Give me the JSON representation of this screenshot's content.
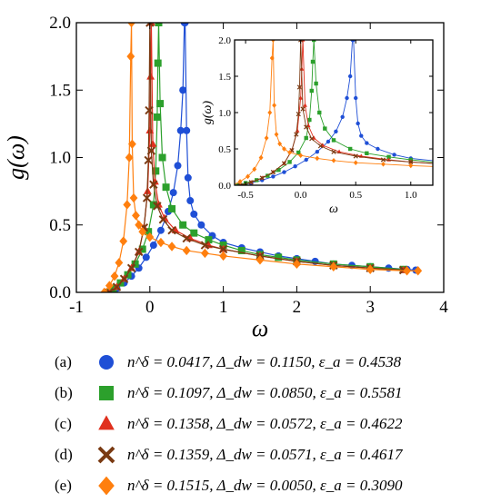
{
  "chart_data": {
    "type": "scatter",
    "xlabel": "ω",
    "ylabel": "g(ω)",
    "xlim": [
      -1,
      4
    ],
    "ylim": [
      0,
      2.0
    ],
    "xticks": [
      "-1",
      "0",
      "1",
      "2",
      "3",
      "4"
    ],
    "yticks": [
      "0.0",
      "0.5",
      "1.0",
      "1.5",
      "2.0"
    ],
    "series": [
      {
        "id": "a",
        "color": "#1f4fd6",
        "marker": "circle",
        "x": [
          -0.53,
          -0.45,
          -0.35,
          -0.25,
          -0.15,
          -0.05,
          0.05,
          0.15,
          0.25,
          0.32,
          0.38,
          0.42,
          0.45,
          0.47,
          0.48,
          0.5,
          0.52,
          0.55,
          0.6,
          0.7,
          0.85,
          1.0,
          1.25,
          1.5,
          1.75,
          2.0,
          2.25,
          2.5,
          2.75,
          3.0,
          3.25,
          3.5,
          3.62
        ],
        "y": [
          0.0,
          0.03,
          0.07,
          0.12,
          0.18,
          0.26,
          0.35,
          0.46,
          0.6,
          0.74,
          0.94,
          1.2,
          1.5,
          2.0,
          2.0,
          1.2,
          0.85,
          0.68,
          0.58,
          0.5,
          0.42,
          0.37,
          0.33,
          0.3,
          0.27,
          0.25,
          0.23,
          0.21,
          0.2,
          0.19,
          0.18,
          0.17,
          0.165
        ]
      },
      {
        "id": "b",
        "color": "#2ca02c",
        "marker": "square",
        "x": [
          -0.57,
          -0.5,
          -0.4,
          -0.3,
          -0.2,
          -0.1,
          -0.02,
          0.05,
          0.08,
          0.1,
          0.11,
          0.12,
          0.14,
          0.17,
          0.22,
          0.3,
          0.45,
          0.6,
          0.8,
          1.0,
          1.25,
          1.5,
          1.75,
          2.0,
          2.5,
          3.0,
          3.45
        ],
        "y": [
          0.0,
          0.03,
          0.07,
          0.13,
          0.21,
          0.32,
          0.45,
          0.65,
          0.9,
          1.3,
          1.7,
          2.0,
          1.4,
          1.0,
          0.78,
          0.62,
          0.5,
          0.44,
          0.39,
          0.35,
          0.31,
          0.28,
          0.26,
          0.24,
          0.21,
          0.19,
          0.17
        ]
      },
      {
        "id": "c",
        "color": "#e0301e",
        "marker": "triangle",
        "x": [
          -0.55,
          -0.45,
          -0.35,
          -0.25,
          -0.15,
          -0.08,
          -0.03,
          0.0,
          0.01,
          0.02,
          0.04,
          0.07,
          0.12,
          0.2,
          0.35,
          0.55,
          0.8,
          1.0,
          1.5,
          2.0,
          2.5,
          3.0,
          3.45
        ],
        "y": [
          0.0,
          0.04,
          0.1,
          0.18,
          0.3,
          0.48,
          0.75,
          1.2,
          1.6,
          2.0,
          1.1,
          0.82,
          0.65,
          0.55,
          0.46,
          0.4,
          0.35,
          0.32,
          0.27,
          0.23,
          0.2,
          0.18,
          0.165
        ]
      },
      {
        "id": "d",
        "color": "#7a3a12",
        "marker": "cross",
        "x": [
          -0.55,
          -0.45,
          -0.35,
          -0.25,
          -0.15,
          -0.08,
          -0.04,
          -0.02,
          -0.01,
          0.0,
          0.02,
          0.05,
          0.1,
          0.18,
          0.3,
          0.5,
          0.75,
          1.0,
          1.5,
          2.0,
          2.5,
          3.0,
          3.45
        ],
        "y": [
          0.0,
          0.04,
          0.1,
          0.18,
          0.3,
          0.48,
          0.7,
          0.98,
          1.35,
          2.0,
          1.05,
          0.8,
          0.64,
          0.54,
          0.46,
          0.4,
          0.35,
          0.32,
          0.27,
          0.23,
          0.2,
          0.18,
          0.165
        ]
      },
      {
        "id": "e",
        "color": "#ff7f0e",
        "marker": "diamond",
        "x": [
          -0.62,
          -0.55,
          -0.48,
          -0.42,
          -0.36,
          -0.31,
          -0.28,
          -0.26,
          -0.25,
          -0.24,
          -0.22,
          -0.19,
          -0.15,
          -0.1,
          0.0,
          0.15,
          0.3,
          0.5,
          0.75,
          1.0,
          1.5,
          2.0,
          2.5,
          3.0,
          3.5,
          3.65
        ],
        "y": [
          0.0,
          0.05,
          0.12,
          0.22,
          0.38,
          0.65,
          1.0,
          1.75,
          2.0,
          1.1,
          0.7,
          0.57,
          0.5,
          0.45,
          0.41,
          0.37,
          0.34,
          0.31,
          0.29,
          0.27,
          0.24,
          0.21,
          0.19,
          0.17,
          0.16,
          0.16
        ]
      }
    ],
    "inset": {
      "xlabel": "ω",
      "ylabel": "g(ω)",
      "xlim": [
        -0.6,
        1.2
      ],
      "ylim": [
        0,
        2.0
      ],
      "xticks": [
        "-0.5",
        "0.0",
        "0.5",
        "1.0"
      ],
      "yticks": [
        "0.0",
        "0.5",
        "1.0",
        "1.5",
        "2.0"
      ]
    }
  },
  "legend": [
    {
      "label": "(a)",
      "series": "a",
      "text": "n^δ = 0.0417,  Δ_dw = 0.1150,  ε_a = 0.4538"
    },
    {
      "label": "(b)",
      "series": "b",
      "text": "n^δ = 0.1097,  Δ_dw = 0.0850,  ε_a = 0.5581"
    },
    {
      "label": "(c)",
      "series": "c",
      "text": "n^δ = 0.1358,  Δ_dw = 0.0572,  ε_a = 0.4622"
    },
    {
      "label": "(d)",
      "series": "d",
      "text": "n^δ = 0.1359,  Δ_dw = 0.0571,  ε_a = 0.4617"
    },
    {
      "label": "(e)",
      "series": "e",
      "text": "n^δ = 0.1515,  Δ_dw = 0.0050,  ε_a = 0.3090"
    }
  ]
}
